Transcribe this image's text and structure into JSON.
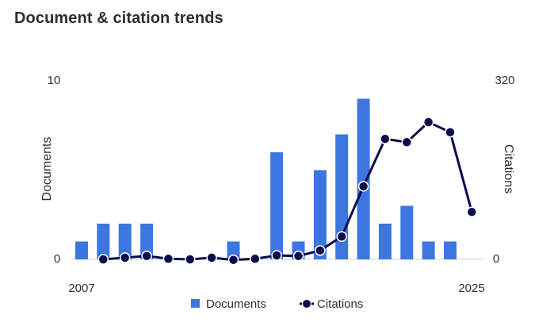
{
  "header": {
    "title": "Document & citation trends"
  },
  "chart_data": {
    "type": "bar",
    "x": [
      2007,
      2008,
      2009,
      2010,
      2011,
      2012,
      2013,
      2014,
      2015,
      2016,
      2017,
      2018,
      2019,
      2020,
      2021,
      2022,
      2023,
      2024,
      2025
    ],
    "series": [
      {
        "name": "Documents",
        "type": "bar",
        "axis": "left",
        "color": "#3b76e1",
        "values": [
          1,
          2,
          2,
          2,
          0,
          0,
          0,
          1,
          0,
          6,
          1,
          5,
          7,
          9,
          2,
          3,
          1,
          1,
          0
        ]
      },
      {
        "name": "Citations",
        "type": "line",
        "axis": "right",
        "color": "#0b0c4a",
        "points": [
          {
            "x": 2008,
            "y": 0
          },
          {
            "x": 2009,
            "y": 3
          },
          {
            "x": 2010,
            "y": 6
          },
          {
            "x": 2011,
            "y": 1
          },
          {
            "x": 2012,
            "y": 0
          },
          {
            "x": 2013,
            "y": 3
          },
          {
            "x": 2014,
            "y": -1
          },
          {
            "x": 2015,
            "y": 1
          },
          {
            "x": 2016,
            "y": 7
          },
          {
            "x": 2017,
            "y": 6
          },
          {
            "x": 2018,
            "y": 16
          },
          {
            "x": 2019,
            "y": 41
          },
          {
            "x": 2020,
            "y": 131
          },
          {
            "x": 2021,
            "y": 216
          },
          {
            "x": 2022,
            "y": 210
          },
          {
            "x": 2023,
            "y": 246
          },
          {
            "x": 2024,
            "y": 228
          },
          {
            "x": 2025,
            "y": 85
          }
        ]
      }
    ],
    "ylabel_left": "Documents",
    "ylabel_right": "Citations",
    "ylim_left": [
      0,
      10
    ],
    "ylim_right": [
      0,
      320
    ],
    "y_ticks_left": [
      "0",
      "10"
    ],
    "y_ticks_right": [
      "0",
      "320"
    ],
    "x_tick_labels": [
      "2007",
      "2025"
    ],
    "grid": false,
    "legend_position": "bottom"
  }
}
